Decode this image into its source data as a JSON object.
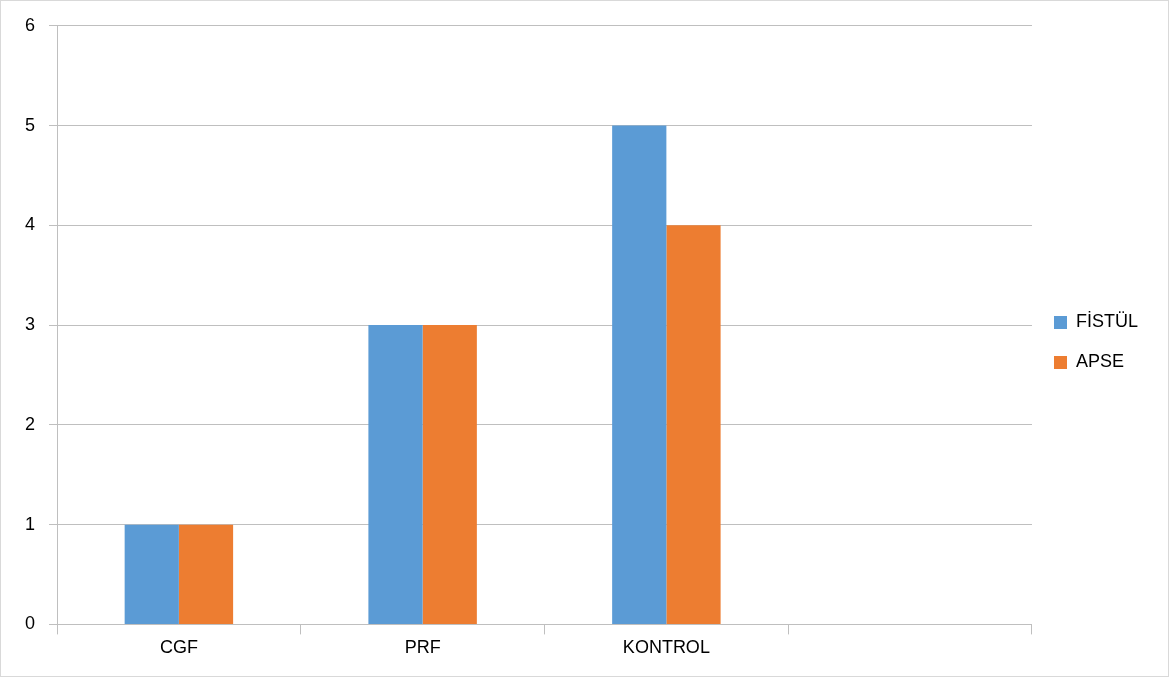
{
  "chart_data": {
    "type": "bar",
    "categories": [
      "CGF",
      "PRF",
      "KONTROL",
      null
    ],
    "series": [
      {
        "name": "FİSTÜL",
        "color": "#5b9bd5",
        "values": [
          1,
          3,
          5,
          null
        ]
      },
      {
        "name": "APSE",
        "color": "#ed7d31",
        "values": [
          1,
          3,
          4,
          null
        ]
      }
    ],
    "ylim": [
      0,
      6
    ],
    "yticks": [
      0,
      1,
      2,
      3,
      4,
      5,
      6
    ],
    "grid": "y",
    "legend": "right"
  }
}
